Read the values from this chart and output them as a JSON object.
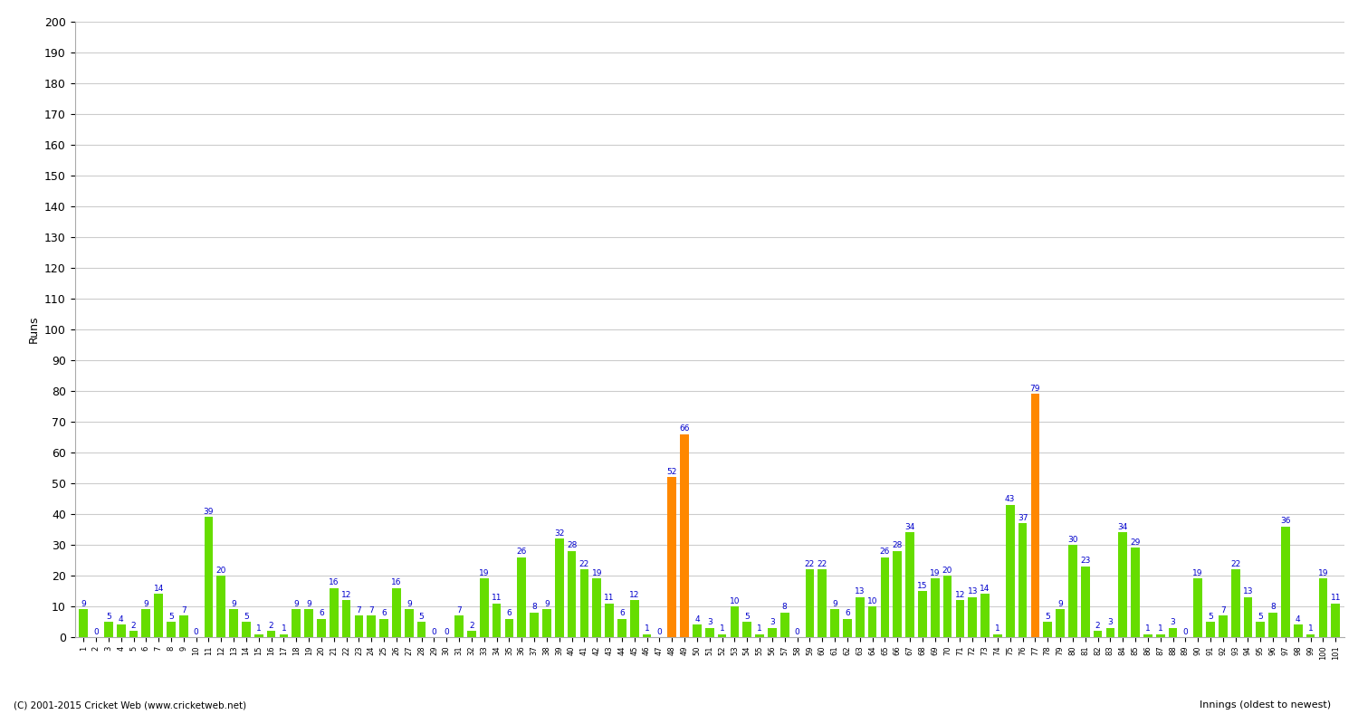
{
  "xlabel_right": "Innings (oldest to newest)",
  "ylabel": "Runs",
  "background_color": "#ffffff",
  "grid_color": "#cccccc",
  "bar_color_green": "#66dd00",
  "bar_color_orange": "#ff8800",
  "text_color": "#0000cc",
  "footer": "(C) 2001-2015 Cricket Web (www.cricketweb.net)",
  "ylim_max": 200,
  "ytick_step": 10,
  "values": [
    9,
    0,
    5,
    4,
    2,
    9,
    14,
    5,
    7,
    0,
    39,
    20,
    9,
    5,
    1,
    2,
    1,
    9,
    9,
    6,
    16,
    12,
    7,
    7,
    6,
    16,
    9,
    5,
    0,
    0,
    7,
    2,
    19,
    11,
    6,
    26,
    8,
    9,
    32,
    28,
    22,
    19,
    11,
    6,
    12,
    1,
    0,
    52,
    66,
    4,
    3,
    1,
    10,
    5,
    1,
    3,
    8,
    0,
    22,
    22,
    9,
    6,
    13,
    10,
    26,
    28,
    34,
    15,
    19,
    20,
    12,
    13,
    14,
    1,
    43,
    37,
    79,
    5,
    9,
    30,
    23,
    2,
    3,
    34,
    29,
    1,
    1,
    3,
    0,
    19,
    5,
    7,
    22,
    13,
    5,
    8,
    36,
    4,
    1,
    19,
    11
  ],
  "not_out": [
    false,
    false,
    false,
    false,
    false,
    false,
    false,
    false,
    false,
    false,
    false,
    false,
    false,
    false,
    false,
    false,
    false,
    false,
    false,
    false,
    false,
    false,
    false,
    false,
    false,
    false,
    false,
    false,
    false,
    false,
    false,
    false,
    false,
    false,
    false,
    false,
    false,
    false,
    false,
    false,
    false,
    false,
    false,
    false,
    false,
    false,
    false,
    true,
    true,
    false,
    false,
    false,
    false,
    false,
    false,
    false,
    false,
    false,
    false,
    false,
    false,
    false,
    false,
    false,
    false,
    false,
    false,
    false,
    false,
    false,
    false,
    false,
    false,
    false,
    false,
    false,
    true,
    false,
    false,
    false,
    false,
    false,
    false,
    false,
    false,
    false,
    false,
    false,
    false,
    false,
    false,
    false,
    false,
    false,
    false,
    false,
    false,
    false,
    false,
    false,
    false
  ],
  "x_labels": [
    "1",
    "2",
    "3",
    "4",
    "5",
    "6",
    "7",
    "8",
    "9",
    "10",
    "11",
    "12",
    "13",
    "14",
    "15",
    "16",
    "17",
    "18",
    "19",
    "20",
    "21",
    "22",
    "23",
    "24",
    "25",
    "26",
    "27",
    "28",
    "29",
    "30",
    "31",
    "32",
    "33",
    "34",
    "35",
    "36",
    "37",
    "38",
    "39",
    "40",
    "41",
    "42",
    "43",
    "44",
    "45",
    "46",
    "47",
    "48",
    "49",
    "50",
    "51",
    "52",
    "53",
    "54",
    "55",
    "56",
    "57",
    "58",
    "59",
    "60",
    "61",
    "62",
    "63",
    "64",
    "65",
    "66",
    "67",
    "68",
    "69",
    "70",
    "71",
    "72",
    "73",
    "74",
    "75",
    "76",
    "77",
    "78",
    "79",
    "80",
    "81",
    "82",
    "83",
    "84",
    "85",
    "86",
    "87",
    "88",
    "89",
    "90",
    "91",
    "92",
    "93",
    "94",
    "95",
    "96",
    "97",
    "98",
    "99",
    "100",
    "101"
  ]
}
